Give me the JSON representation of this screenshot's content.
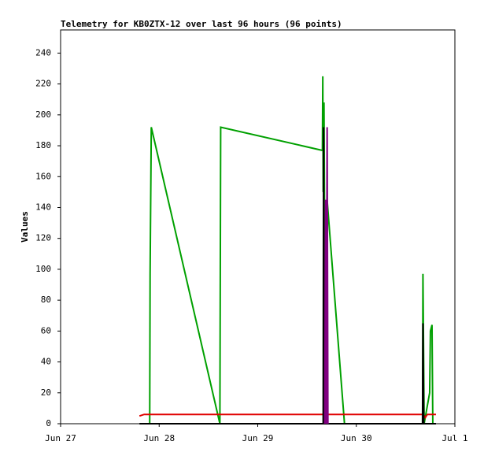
{
  "chart_data": {
    "type": "line",
    "title": "Telemetry for KB0ZTX-12 over last 96 hours (96 points)",
    "y_label": "Values",
    "xlim": [
      0,
      4
    ],
    "ylim": [
      0,
      255
    ],
    "xticks": [
      {
        "value": 0,
        "label": "Jun 27"
      },
      {
        "value": 1,
        "label": "Jun 28"
      },
      {
        "value": 2,
        "label": "Jun 29"
      },
      {
        "value": 3,
        "label": "Jun 30"
      },
      {
        "value": 4,
        "label": "Jul 1"
      }
    ],
    "yticks": [
      0,
      20,
      40,
      60,
      80,
      100,
      120,
      140,
      160,
      180,
      200,
      220,
      240
    ],
    "series": [
      {
        "color": "#00a000",
        "x": [
          0.904,
          0.908,
          0.92,
          1.616,
          1.624,
          2.656,
          2.66,
          2.664,
          2.672,
          2.688,
          2.704,
          2.88,
          3.672,
          3.676,
          3.688,
          3.744,
          3.752,
          3.768,
          3.776
        ],
        "values": [
          0,
          97,
          192,
          0,
          192,
          177,
          225,
          150,
          208,
          0,
          145,
          0,
          0,
          97,
          0,
          20,
          60,
          64,
          0
        ]
      },
      {
        "color": "#e00000",
        "x": [
          0.8,
          0.848,
          3.68,
          3.7,
          3.72,
          3.808
        ],
        "values": [
          5,
          6,
          6,
          4,
          6,
          6
        ]
      },
      {
        "color": "#000000",
        "x": [
          0.8,
          2.664,
          2.668,
          2.672,
          3.672,
          3.676,
          3.684,
          3.808
        ],
        "values": [
          0,
          0,
          192,
          0,
          0,
          65,
          0,
          0
        ]
      },
      {
        "color": "#800080",
        "x": [
          2.68,
          2.688,
          2.696,
          2.704,
          2.712
        ],
        "values": [
          0,
          145,
          0,
          192,
          0
        ]
      }
    ]
  }
}
